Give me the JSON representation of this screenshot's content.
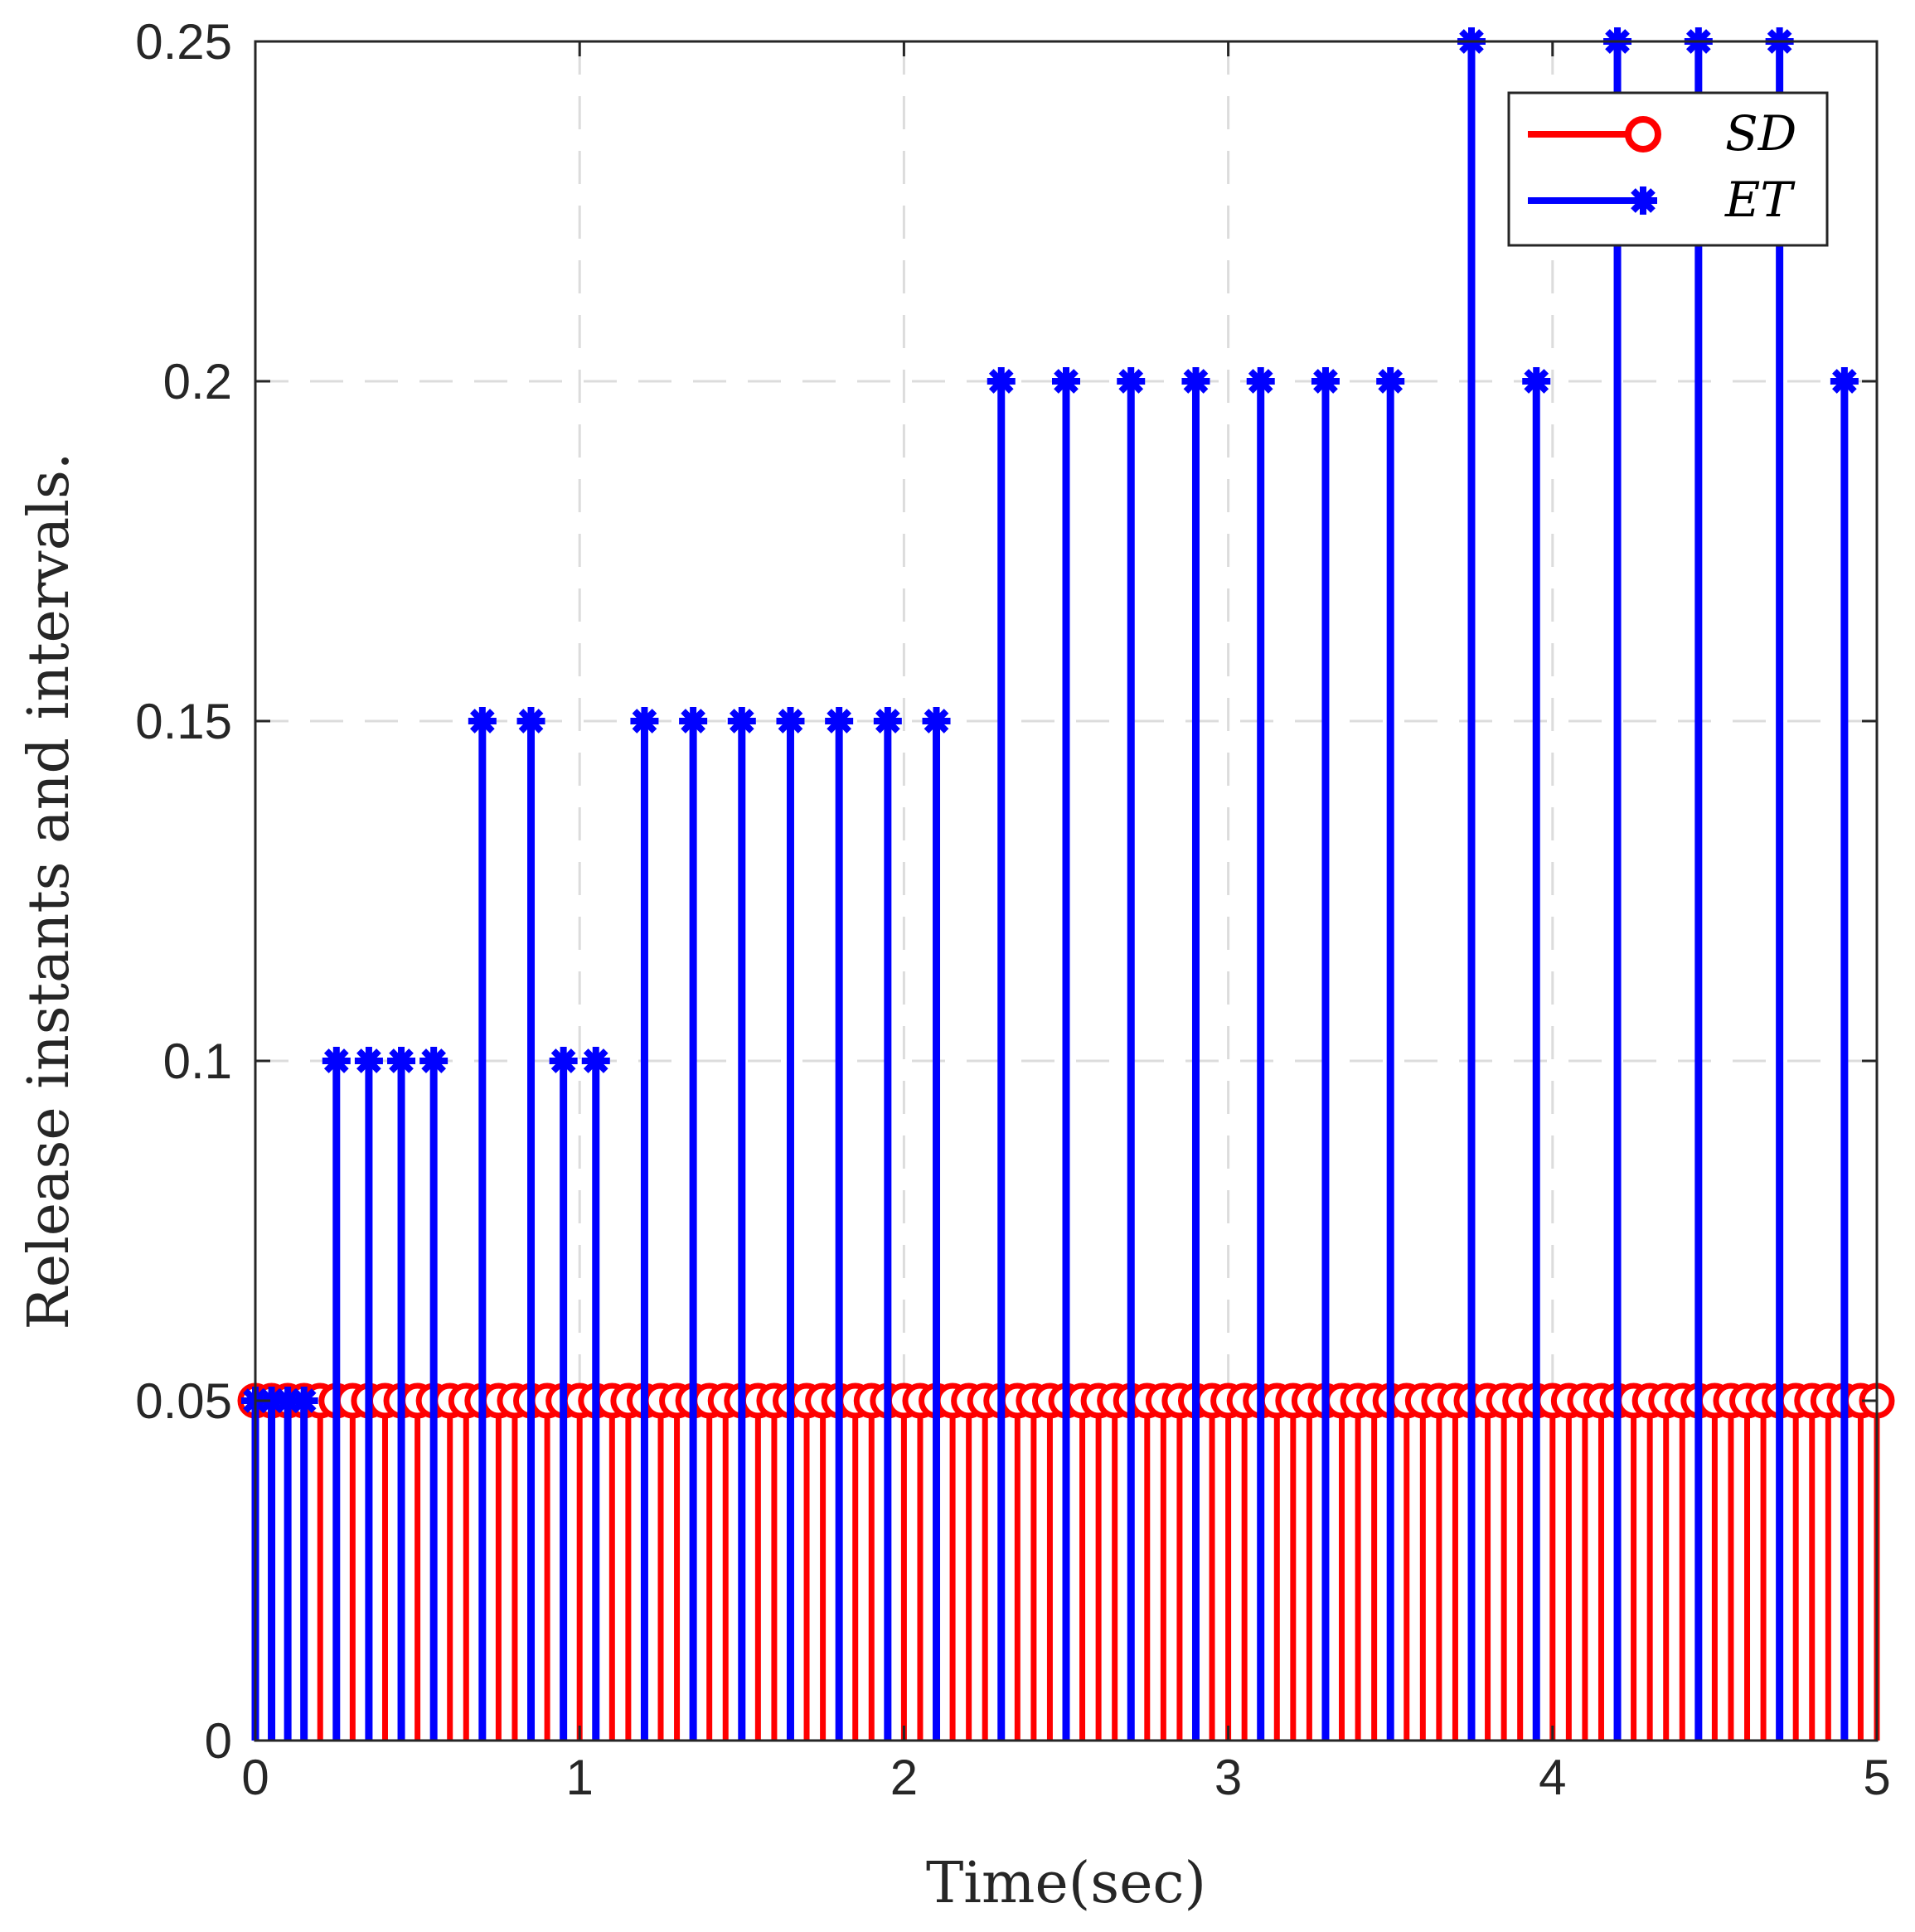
{
  "chart_data": {
    "type": "stem",
    "xlabel": "Time(sec)",
    "ylabel": "Release instants and intervals.",
    "xlim": [
      0,
      5
    ],
    "ylim": [
      0,
      0.25
    ],
    "xticks": [
      0,
      1,
      2,
      3,
      4,
      5
    ],
    "yticks": [
      0,
      0.05,
      0.1,
      0.15,
      0.2,
      0.25
    ],
    "xtick_labels": [
      "0",
      "1",
      "2",
      "3",
      "4",
      "5"
    ],
    "ytick_labels": [
      "0",
      "0.05",
      "0.1",
      "0.15",
      "0.2",
      "0.25"
    ],
    "grid": true,
    "legend_position": "top-right",
    "series": [
      {
        "name": "SD",
        "color": "#ff0000",
        "marker": "circle",
        "x_start": 0.0,
        "x_step": 0.05,
        "x_end": 5.0,
        "value": 0.05
      },
      {
        "name": "ET",
        "color": "#0000ff",
        "marker": "asterisk",
        "x": [
          0.0,
          0.05,
          0.1,
          0.15,
          0.25,
          0.35,
          0.45,
          0.55,
          0.7,
          0.85,
          0.95,
          1.05,
          1.2,
          1.35,
          1.5,
          1.65,
          1.8,
          1.95,
          2.1,
          2.3,
          2.5,
          2.7,
          2.9,
          3.1,
          3.3,
          3.5,
          3.75,
          3.95,
          4.2,
          4.45,
          4.7,
          4.9
        ],
        "values": [
          0.05,
          0.05,
          0.05,
          0.05,
          0.1,
          0.1,
          0.1,
          0.1,
          0.15,
          0.15,
          0.1,
          0.1,
          0.15,
          0.15,
          0.15,
          0.15,
          0.15,
          0.15,
          0.15,
          0.2,
          0.2,
          0.2,
          0.2,
          0.2,
          0.2,
          0.2,
          0.25,
          0.2,
          0.25,
          0.25,
          0.25,
          0.2
        ]
      }
    ]
  },
  "legend": {
    "items": [
      {
        "label": "SD",
        "color": "#ff0000",
        "marker": "circle"
      },
      {
        "label": "ET",
        "color": "#0000ff",
        "marker": "asterisk"
      }
    ]
  }
}
